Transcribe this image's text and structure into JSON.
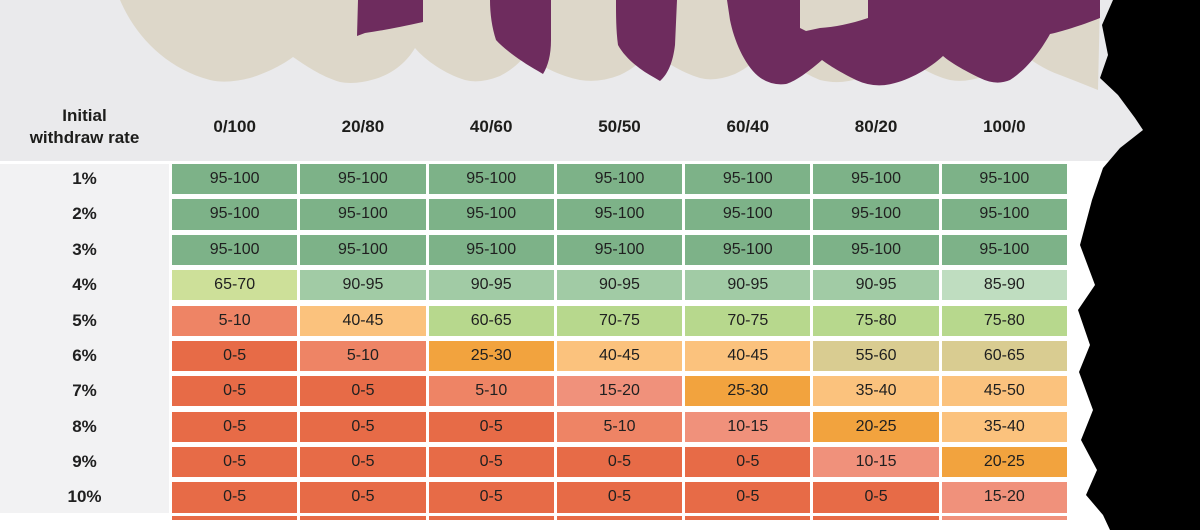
{
  "header": {
    "row_header_line1": "Initial",
    "row_header_line2": "withdraw rate"
  },
  "chart_data": {
    "type": "heatmap",
    "title": "",
    "row_axis_label": "Initial withdraw rate",
    "columns": [
      "0/100",
      "20/80",
      "40/60",
      "50/50",
      "60/40",
      "80/20",
      "100/0"
    ],
    "rows": [
      "1%",
      "2%",
      "3%",
      "4%",
      "5%",
      "6%",
      "7%",
      "8%",
      "9%",
      "10%"
    ],
    "values": [
      [
        "95-100",
        "95-100",
        "95-100",
        "95-100",
        "95-100",
        "95-100",
        "95-100"
      ],
      [
        "95-100",
        "95-100",
        "95-100",
        "95-100",
        "95-100",
        "95-100",
        "95-100"
      ],
      [
        "95-100",
        "95-100",
        "95-100",
        "95-100",
        "95-100",
        "95-100",
        "95-100"
      ],
      [
        "65-70",
        "90-95",
        "90-95",
        "90-95",
        "90-95",
        "90-95",
        "85-90"
      ],
      [
        "5-10",
        "40-45",
        "60-65",
        "70-75",
        "70-75",
        "75-80",
        "75-80"
      ],
      [
        "0-5",
        "5-10",
        "25-30",
        "40-45",
        "40-45",
        "55-60",
        "60-65"
      ],
      [
        "0-5",
        "0-5",
        "5-10",
        "15-20",
        "25-30",
        "35-40",
        "45-50"
      ],
      [
        "0-5",
        "0-5",
        "0-5",
        "5-10",
        "10-15",
        "20-25",
        "35-40"
      ],
      [
        "0-5",
        "0-5",
        "0-5",
        "0-5",
        "0-5",
        "10-15",
        "20-25"
      ],
      [
        "0-5",
        "0-5",
        "0-5",
        "0-5",
        "0-5",
        "0-5",
        "15-20"
      ]
    ],
    "cell_color_keys": [
      [
        "g1",
        "g1",
        "g1",
        "g1",
        "g1",
        "g1",
        "g1"
      ],
      [
        "g1",
        "g1",
        "g1",
        "g1",
        "g1",
        "g1",
        "g1"
      ],
      [
        "g1",
        "g1",
        "g1",
        "g1",
        "g1",
        "g1",
        "g1"
      ],
      [
        "yg",
        "g2",
        "g2",
        "g2",
        "g2",
        "g2",
        "g3"
      ],
      [
        "s1",
        "pe",
        "lg",
        "lg",
        "lg",
        "lg",
        "lg"
      ],
      [
        "rd",
        "s1",
        "or",
        "pe",
        "pe",
        "kh",
        "kh"
      ],
      [
        "rd",
        "rd",
        "s1",
        "s2",
        "or",
        "pe",
        "pe"
      ],
      [
        "rd",
        "rd",
        "rd",
        "s1",
        "s2",
        "or",
        "pe"
      ],
      [
        "rd",
        "rd",
        "rd",
        "rd",
        "rd",
        "s2",
        "or"
      ],
      [
        "rd",
        "rd",
        "rd",
        "rd",
        "rd",
        "rd",
        "s2"
      ]
    ],
    "bottom_sliver_color_keys": [
      "rd",
      "rd",
      "rd",
      "rd",
      "rd",
      "rd",
      "s2"
    ]
  },
  "colors": {
    "g1": "#7db288",
    "g2": "#a1cba5",
    "g3": "#bfddc0",
    "yg": "#cde099",
    "lg": "#b7d88d",
    "kh": "#d9cc91",
    "pe": "#fbc27d",
    "or": "#f2a33e",
    "s2": "#f0917b",
    "s1": "#ee8465",
    "rd": "#e76b47",
    "top_band_gray": "#eaeaec",
    "beige": "#ddd7c9",
    "purple": "#6e2c5e",
    "black": "#000000",
    "row_header_bg": "#f2f2f3",
    "text": "#1d1d1b"
  }
}
